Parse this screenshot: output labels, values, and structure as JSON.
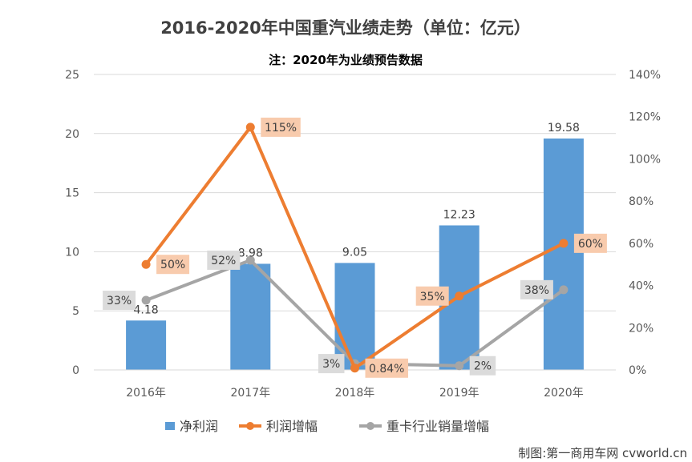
{
  "chart_data": {
    "type": "bar+line",
    "title": "2016-2020年中国重汽业绩走势（单位：亿元）",
    "subtitle": "注：2020年为业绩预告数据",
    "categories": [
      "2016年",
      "2017年",
      "2018年",
      "2019年",
      "2020年"
    ],
    "y_left": {
      "min": 0,
      "max": 25,
      "ticks": [
        "0",
        "5",
        "10",
        "15",
        "20",
        "25"
      ],
      "tick_values": [
        0,
        5,
        10,
        15,
        20,
        25
      ]
    },
    "y_right": {
      "min": 0,
      "max": 140,
      "ticks": [
        "0%",
        "20%",
        "40%",
        "60%",
        "80%",
        "100%",
        "120%",
        "140%"
      ],
      "tick_values": [
        0,
        20,
        40,
        60,
        80,
        100,
        120,
        140
      ]
    },
    "grid": true,
    "legend_position": "bottom",
    "series": [
      {
        "name": "净利润",
        "type": "bar",
        "axis": "left",
        "color": "#5B9BD5",
        "values": [
          4.18,
          8.98,
          9.05,
          12.23,
          19.58
        ],
        "labels": [
          "4.18",
          "8.98",
          "9.05",
          "12.23",
          "19.58"
        ]
      },
      {
        "name": "利润增幅",
        "type": "line",
        "axis": "right",
        "color": "#ED7D31",
        "label_bg": "#F8CBAD",
        "values": [
          50,
          115,
          0.84,
          35,
          60
        ],
        "labels": [
          "50%",
          "115%",
          "0.84%",
          "35%",
          "60%"
        ]
      },
      {
        "name": "重卡行业销量增幅",
        "type": "line",
        "axis": "right",
        "color": "#A5A5A5",
        "label_bg": "#DBDBDB",
        "values": [
          33,
          52,
          3,
          2,
          38
        ],
        "labels": [
          "33%",
          "52%",
          "3%",
          "2%",
          "38%"
        ]
      }
    ]
  },
  "credit": "制图:第一商用车网 cvworld.cn"
}
